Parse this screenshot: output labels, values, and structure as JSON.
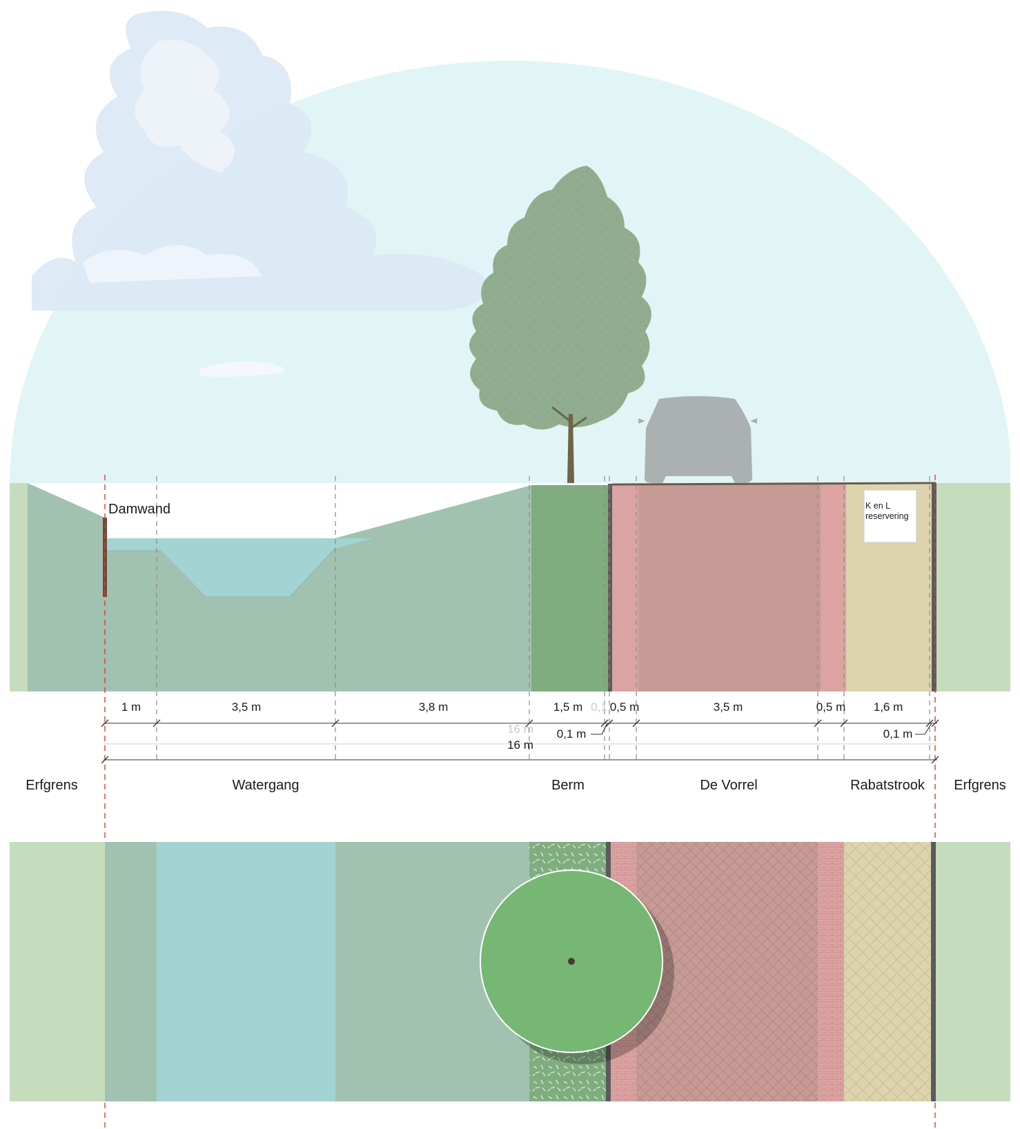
{
  "annotations": {
    "damwand": "Damwand",
    "kl_line1": "K en L",
    "kl_line2": "reservering"
  },
  "dimensions": {
    "d1": "1 m",
    "d2": "3,5 m",
    "d3": "3,8 m",
    "d4": "1,5 m",
    "d5": "0,1",
    "d6": "0,5 m",
    "d7": "3,5 m",
    "d8": "0,5 m",
    "d9": "1,6 m",
    "d10": "0,1 m",
    "d11": "0,1 m",
    "total_ghost": "16 m",
    "total": "16 m"
  },
  "zones": {
    "erfgrens_left": "Erfgrens",
    "watergang": "Watergang",
    "berm": "Berm",
    "de_vorrel": "De Vorrel",
    "rabatstrook": "Rabatstrook",
    "erfgrens_right": "Erfgrens"
  },
  "colors": {
    "sky": "#e2f5f6",
    "cloud": "#dbe8f4",
    "ground": "#a2c2b1",
    "grass_light": "#c6ddbd",
    "water": "#a3d3d3",
    "berm": "#80ad80",
    "red_light": "#dba3a1",
    "red_road": "#c69b96",
    "sand": "#ddd3ad",
    "tree": "#90ae8f",
    "tree_top_view": "#75b773",
    "car": "#abb1b1",
    "boundary_red": "#e23a2e",
    "dark_edge": "#5b5b5b"
  },
  "icons": {
    "tree": "tree-icon",
    "car": "car-icon",
    "cloud": "cloud-icon",
    "tree_top": "tree-top-view-icon"
  }
}
